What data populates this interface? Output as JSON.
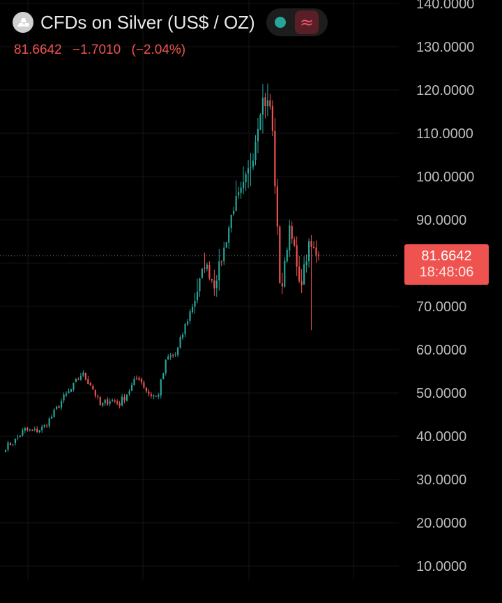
{
  "header": {
    "title": "CFDs on Silver (US$ / OZ)",
    "logo_icon": "silver-bars-icon",
    "status_icon": "market-status-dot-icon",
    "status_color": "#26a69a",
    "wave_icon": "wave-icon",
    "wave_glyph": "≈"
  },
  "quote": {
    "price": "81.6642",
    "change": "−1.7010",
    "change_percent": "(−2.04%)"
  },
  "price_tag": {
    "price": "81.6642",
    "countdown": "18:48:06"
  },
  "colors": {
    "background": "#000000",
    "up": "#26a69a",
    "down": "#ef5350",
    "grid": "#151515",
    "axis_text": "#bdbdbd"
  },
  "chart_data": {
    "type": "candlestick",
    "title": "CFDs on Silver (US$ / OZ)",
    "y_ticks": [
      "140.0000",
      "130.0000",
      "120.0000",
      "110.0000",
      "100.0000",
      "90.0000",
      "80.0000",
      "70.0000",
      "60.0000",
      "50.0000",
      "40.0000",
      "30.0000",
      "20.0000",
      "10.0000"
    ],
    "ylim": [
      10,
      140
    ],
    "last_price": 81.6642,
    "grid": true,
    "close_path": [
      37.5,
      39,
      41.5,
      41,
      42,
      45,
      48.5,
      51,
      54.5,
      52,
      47,
      48.5,
      47.5,
      50.5,
      54,
      50,
      49,
      58,
      59,
      66,
      72,
      80,
      75,
      83,
      93,
      97,
      104,
      118,
      116,
      72,
      90,
      74,
      84,
      82
    ],
    "spikes": {
      "peak_high": 121.5,
      "post_peak_low": 64.5
    }
  }
}
